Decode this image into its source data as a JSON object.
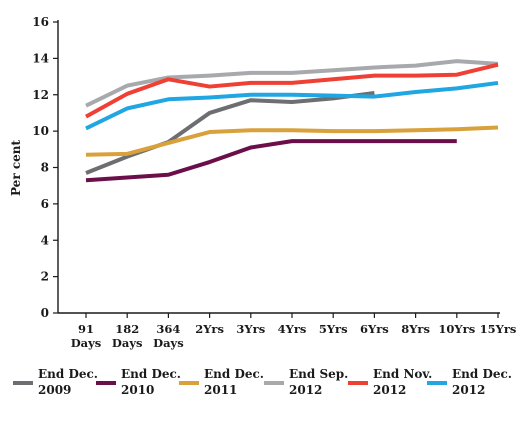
{
  "chart_data": {
    "type": "line",
    "title": "",
    "xlabel": "",
    "ylabel": "Per cent",
    "categories": [
      [
        "91",
        "Days"
      ],
      [
        "182",
        "Days"
      ],
      [
        "364",
        "Days"
      ],
      [
        "2Yrs"
      ],
      [
        "3Yrs"
      ],
      [
        "4Yrs"
      ],
      [
        "5Yrs"
      ],
      [
        "6Yrs"
      ],
      [
        "8Yrs"
      ],
      [
        "10Yrs"
      ],
      [
        "15Yrs"
      ]
    ],
    "ylim": [
      0,
      16
    ],
    "yticks": [
      "0",
      "2",
      "4",
      "6",
      "8",
      "10",
      "12",
      "14",
      "16"
    ],
    "grid": false,
    "legend_position": "bottom",
    "series": [
      {
        "name": [
          "End Dec.",
          "2009"
        ],
        "color": "#6d6e71",
        "values": [
          7.7,
          8.6,
          9.4,
          11.0,
          11.7,
          11.6,
          11.8,
          12.1,
          null,
          null,
          null
        ]
      },
      {
        "name": [
          "End Dec.",
          "2010"
        ],
        "color": "#6b0f4a",
        "values": [
          7.3,
          7.45,
          7.6,
          8.3,
          9.1,
          9.45,
          9.45,
          9.45,
          9.45,
          9.45,
          null
        ]
      },
      {
        "name": [
          "End Dec.",
          "2011"
        ],
        "color": "#d9a13b",
        "values": [
          8.7,
          8.75,
          9.35,
          9.95,
          10.05,
          10.05,
          10.0,
          10.0,
          10.05,
          10.1,
          10.2
        ]
      },
      {
        "name": [
          "End Sep.",
          "2012"
        ],
        "color": "#a7a9ac",
        "values": [
          11.4,
          12.5,
          12.95,
          13.05,
          13.2,
          13.2,
          13.35,
          13.5,
          13.6,
          13.85,
          13.7
        ]
      },
      {
        "name": [
          "End Nov.",
          "2012"
        ],
        "color": "#ee4035",
        "values": [
          10.8,
          12.05,
          12.85,
          12.45,
          12.65,
          12.65,
          12.85,
          13.05,
          13.05,
          13.1,
          13.65
        ]
      },
      {
        "name": [
          "End Dec.",
          "2012"
        ],
        "color": "#1fa6e3",
        "values": [
          10.15,
          11.25,
          11.75,
          11.85,
          12.0,
          12.0,
          11.95,
          11.9,
          12.15,
          12.35,
          12.65
        ]
      }
    ]
  }
}
